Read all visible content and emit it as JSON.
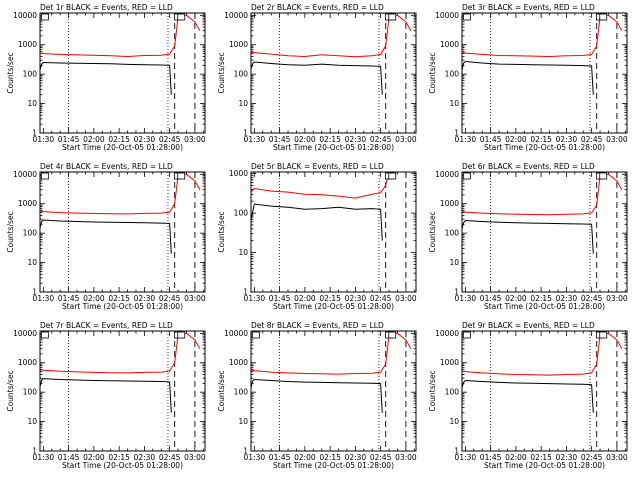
{
  "chart_data": [
    {
      "type": "line",
      "title": "Det 1r BLACK = Events, RED = LLD",
      "xlabel": "Start Time (20-Oct-05 01:28:00)",
      "ylabel": "Counts/sec",
      "xticks": [
        "01:30",
        "01:45",
        "02:00",
        "02:15",
        "02:30",
        "02:45",
        "03:00"
      ],
      "yticks": [
        "1",
        "10",
        "100",
        "1000",
        "10000"
      ],
      "yscale": "log",
      "ylim": [
        1,
        12000
      ],
      "dotted_x": [
        "01:45",
        "02:44"
      ],
      "dashed_x": [
        "02:48",
        "03:00"
      ],
      "legend_boxes": [
        "01:30",
        "02:49",
        "02:51"
      ],
      "series": [
        {
          "color": "#000000",
          "x": [
            "01:28",
            "01:29",
            "01:30",
            "01:40",
            "01:50",
            "02:00",
            "02:10",
            "02:20",
            "02:30",
            "02:40",
            "02:45",
            "02:46"
          ],
          "values": [
            140,
            220,
            250,
            240,
            235,
            230,
            225,
            215,
            210,
            205,
            200,
            20
          ]
        },
        {
          "color": "#ff0000",
          "x": [
            "01:28",
            "01:29",
            "01:30",
            "01:40",
            "01:50",
            "02:00",
            "02:10",
            "02:20",
            "02:30",
            "02:40",
            "02:45",
            "02:48",
            "02:50",
            "02:55",
            "03:00",
            "03:03"
          ],
          "values": [
            500,
            520,
            500,
            470,
            450,
            440,
            420,
            400,
            430,
            440,
            480,
            900,
            9000,
            10000,
            6000,
            3000
          ]
        }
      ]
    },
    {
      "type": "line",
      "title": "Det 2r BLACK = Events, RED = LLD",
      "xlabel": "Start Time (20-Oct-05 01:28:00)",
      "ylabel": "Counts/sec",
      "xticks": [
        "01:30",
        "01:45",
        "02:00",
        "02:15",
        "02:30",
        "02:45",
        "03:00"
      ],
      "yticks": [
        "1",
        "10",
        "100",
        "1000",
        "10000"
      ],
      "yscale": "log",
      "ylim": [
        1,
        12000
      ],
      "dotted_x": [
        "01:45",
        "02:44"
      ],
      "dashed_x": [
        "02:48",
        "03:00"
      ],
      "legend_boxes": [
        "02:49",
        "02:51"
      ],
      "series": [
        {
          "color": "#000000",
          "x": [
            "01:28",
            "01:29",
            "01:30",
            "01:40",
            "01:50",
            "02:00",
            "02:10",
            "02:20",
            "02:30",
            "02:40",
            "02:45",
            "02:46"
          ],
          "values": [
            150,
            230,
            260,
            230,
            210,
            200,
            220,
            200,
            195,
            190,
            185,
            20
          ]
        },
        {
          "color": "#ff0000",
          "x": [
            "01:28",
            "01:29",
            "01:30",
            "01:40",
            "01:50",
            "02:00",
            "02:10",
            "02:20",
            "02:30",
            "02:40",
            "02:45",
            "02:48",
            "02:50",
            "02:55",
            "03:00",
            "03:03"
          ],
          "values": [
            520,
            560,
            540,
            480,
            420,
            400,
            460,
            420,
            390,
            420,
            470,
            900,
            9000,
            10000,
            6000,
            3000
          ]
        }
      ]
    },
    {
      "type": "line",
      "title": "Det 3r BLACK = Events, RED = LLD",
      "xlabel": "Start Time (20-Oct-05 01:28:00)",
      "ylabel": "Counts/sec",
      "xticks": [
        "01:30",
        "01:45",
        "02:00",
        "02:15",
        "02:30",
        "02:45",
        "03:00"
      ],
      "yticks": [
        "1",
        "10",
        "100",
        "1000",
        "10000"
      ],
      "yscale": "log",
      "ylim": [
        1,
        12000
      ],
      "dotted_x": [
        "01:45",
        "02:44"
      ],
      "dashed_x": [
        "02:48",
        "03:00"
      ],
      "legend_boxes": [
        "01:30",
        "02:49",
        "02:51"
      ],
      "series": [
        {
          "color": "#000000",
          "x": [
            "01:28",
            "01:29",
            "01:30",
            "01:40",
            "01:50",
            "02:00",
            "02:10",
            "02:20",
            "02:30",
            "02:40",
            "02:45",
            "02:46"
          ],
          "values": [
            140,
            240,
            270,
            240,
            220,
            215,
            210,
            205,
            200,
            195,
            190,
            20
          ]
        },
        {
          "color": "#ff0000",
          "x": [
            "01:28",
            "01:29",
            "01:30",
            "01:40",
            "01:50",
            "02:00",
            "02:10",
            "02:20",
            "02:30",
            "02:40",
            "02:45",
            "02:48",
            "02:50",
            "02:55",
            "03:00",
            "03:03"
          ],
          "values": [
            500,
            540,
            520,
            470,
            430,
            420,
            410,
            400,
            420,
            430,
            470,
            900,
            9000,
            10000,
            6000,
            3000
          ]
        }
      ]
    },
    {
      "type": "line",
      "title": "Det 4r BLACK = Events, RED = LLD",
      "xlabel": "Start Time (20-Oct-05 01:28:00)",
      "ylabel": "Counts/sec",
      "xticks": [
        "01:30",
        "01:45",
        "02:00",
        "02:15",
        "02:30",
        "02:45",
        "03:00"
      ],
      "yticks": [
        "1",
        "10",
        "100",
        "1000",
        "10000"
      ],
      "yscale": "log",
      "ylim": [
        1,
        12000
      ],
      "dotted_x": [
        "01:45",
        "02:44"
      ],
      "dashed_x": [
        "02:48",
        "03:00"
      ],
      "legend_boxes": [
        "01:30",
        "02:49",
        "02:51"
      ],
      "series": [
        {
          "color": "#000000",
          "x": [
            "01:28",
            "01:29",
            "01:30",
            "01:40",
            "01:50",
            "02:00",
            "02:10",
            "02:20",
            "02:30",
            "02:40",
            "02:45",
            "02:46"
          ],
          "values": [
            150,
            250,
            280,
            260,
            250,
            240,
            235,
            230,
            225,
            220,
            215,
            20
          ]
        },
        {
          "color": "#ff0000",
          "x": [
            "01:28",
            "01:29",
            "01:30",
            "01:40",
            "01:50",
            "02:00",
            "02:10",
            "02:20",
            "02:30",
            "02:40",
            "02:45",
            "02:48",
            "02:50",
            "02:55",
            "03:00",
            "03:03"
          ],
          "values": [
            520,
            560,
            540,
            500,
            480,
            470,
            460,
            450,
            470,
            480,
            520,
            1000,
            9000,
            10000,
            6000,
            3000
          ]
        }
      ]
    },
    {
      "type": "line",
      "title": "Det 5r BLACK = Events, RED = LLD",
      "xlabel": "Start Time (20-Oct-05 01:28:00)",
      "ylabel": "Counts/sec",
      "xticks": [
        "01:30",
        "01:45",
        "02:00",
        "02:15",
        "02:30",
        "02:45",
        "03:00"
      ],
      "yticks": [
        "1",
        "10",
        "100",
        "1000"
      ],
      "yscale": "log",
      "ylim": [
        1,
        1100
      ],
      "dotted_x": [
        "01:45",
        "02:44"
      ],
      "dashed_x": [
        "02:48",
        "03:00"
      ],
      "legend_boxes": [
        "02:49",
        "02:51"
      ],
      "series": [
        {
          "color": "#000000",
          "x": [
            "01:28",
            "01:29",
            "01:30",
            "01:40",
            "01:50",
            "02:00",
            "02:10",
            "02:20",
            "02:30",
            "02:40",
            "02:45",
            "02:46"
          ],
          "values": [
            60,
            110,
            170,
            150,
            140,
            125,
            130,
            140,
            125,
            130,
            125,
            20
          ]
        },
        {
          "color": "#ff0000",
          "x": [
            "01:28",
            "01:29",
            "01:30",
            "01:40",
            "01:50",
            "02:00",
            "02:10",
            "02:20",
            "02:30",
            "02:40",
            "02:45",
            "02:48",
            "02:50"
          ],
          "values": [
            330,
            380,
            420,
            360,
            340,
            300,
            290,
            270,
            240,
            300,
            330,
            500,
            1100
          ]
        }
      ]
    },
    {
      "type": "line",
      "title": "Det 6r BLACK = Events, RED = LLD",
      "xlabel": "Start Time (20-Oct-05 01:28:00)",
      "ylabel": "Counts/sec",
      "xticks": [
        "01:30",
        "01:45",
        "02:00",
        "02:15",
        "02:30",
        "02:45",
        "03:00"
      ],
      "yticks": [
        "1",
        "10",
        "100",
        "1000",
        "10000"
      ],
      "yscale": "log",
      "ylim": [
        1,
        12000
      ],
      "dotted_x": [
        "01:45",
        "02:44"
      ],
      "dashed_x": [
        "02:48",
        "03:00"
      ],
      "legend_boxes": [
        "01:30",
        "02:49",
        "02:51"
      ],
      "series": [
        {
          "color": "#000000",
          "x": [
            "01:28",
            "01:29",
            "01:30",
            "01:40",
            "01:50",
            "02:00",
            "02:10",
            "02:20",
            "02:30",
            "02:40",
            "02:45",
            "02:46"
          ],
          "values": [
            140,
            230,
            270,
            250,
            235,
            225,
            220,
            215,
            210,
            205,
            200,
            20
          ]
        },
        {
          "color": "#ff0000",
          "x": [
            "01:28",
            "01:29",
            "01:30",
            "01:40",
            "01:50",
            "02:00",
            "02:10",
            "02:20",
            "02:30",
            "02:40",
            "02:45",
            "02:48",
            "02:50",
            "02:55",
            "03:00",
            "03:03"
          ],
          "values": [
            500,
            540,
            520,
            480,
            460,
            440,
            430,
            420,
            440,
            450,
            490,
            900,
            9000,
            10000,
            6000,
            3000
          ]
        }
      ]
    },
    {
      "type": "line",
      "title": "Det 7r BLACK = Events, RED = LLD",
      "xlabel": "Start Time (20-Oct-05 01:28:00)",
      "ylabel": "Counts/sec",
      "xticks": [
        "01:30",
        "01:45",
        "02:00",
        "02:15",
        "02:30",
        "02:45",
        "03:00"
      ],
      "yticks": [
        "1",
        "10",
        "100",
        "1000",
        "10000"
      ],
      "yscale": "log",
      "ylim": [
        1,
        12000
      ],
      "dotted_x": [
        "01:45",
        "02:44"
      ],
      "dashed_x": [
        "02:48",
        "03:00"
      ],
      "legend_boxes": [
        "01:30",
        "02:49",
        "02:51"
      ],
      "series": [
        {
          "color": "#000000",
          "x": [
            "01:28",
            "01:29",
            "01:30",
            "01:40",
            "01:50",
            "02:00",
            "02:10",
            "02:20",
            "02:30",
            "02:40",
            "02:45",
            "02:46"
          ],
          "values": [
            150,
            260,
            290,
            270,
            260,
            250,
            245,
            240,
            235,
            230,
            225,
            20
          ]
        },
        {
          "color": "#ff0000",
          "x": [
            "01:28",
            "01:29",
            "01:30",
            "01:40",
            "01:50",
            "02:00",
            "02:10",
            "02:20",
            "02:30",
            "02:40",
            "02:45",
            "02:48",
            "02:50",
            "02:55",
            "03:00",
            "03:03"
          ],
          "values": [
            540,
            580,
            560,
            510,
            490,
            470,
            460,
            450,
            470,
            480,
            520,
            1000,
            9000,
            10000,
            6000,
            3000
          ]
        }
      ]
    },
    {
      "type": "line",
      "title": "Det 8r BLACK = Events, RED = LLD",
      "xlabel": "Start Time (20-Oct-05 01:28:00)",
      "ylabel": "Counts/sec",
      "xticks": [
        "01:30",
        "01:45",
        "02:00",
        "02:15",
        "02:30",
        "02:45",
        "03:00"
      ],
      "yticks": [
        "1",
        "10",
        "100",
        "1000",
        "10000"
      ],
      "yscale": "log",
      "ylim": [
        1,
        12000
      ],
      "dotted_x": [
        "01:45",
        "02:44"
      ],
      "dashed_x": [
        "02:48",
        "03:00"
      ],
      "legend_boxes": [
        "01:30",
        "02:49",
        "02:51"
      ],
      "series": [
        {
          "color": "#000000",
          "x": [
            "01:28",
            "01:29",
            "01:30",
            "01:40",
            "01:50",
            "02:00",
            "02:10",
            "02:20",
            "02:30",
            "02:40",
            "02:45",
            "02:46"
          ],
          "values": [
            140,
            240,
            270,
            250,
            230,
            220,
            215,
            210,
            205,
            200,
            195,
            20
          ]
        },
        {
          "color": "#ff0000",
          "x": [
            "01:28",
            "01:29",
            "01:30",
            "01:40",
            "01:50",
            "02:00",
            "02:10",
            "02:20",
            "02:30",
            "02:40",
            "02:45",
            "02:48",
            "02:50",
            "02:55",
            "03:00",
            "03:03"
          ],
          "values": [
            520,
            560,
            540,
            480,
            450,
            430,
            420,
            410,
            430,
            440,
            480,
            900,
            9000,
            10000,
            6000,
            3000
          ]
        }
      ]
    },
    {
      "type": "line",
      "title": "Det 9r BLACK = Events, RED = LLD",
      "xlabel": "Start Time (20-Oct-05 01:28:00)",
      "ylabel": "Counts/sec",
      "xticks": [
        "01:30",
        "01:45",
        "02:00",
        "02:15",
        "02:30",
        "02:45",
        "03:00"
      ],
      "yticks": [
        "1",
        "10",
        "100",
        "1000",
        "10000"
      ],
      "yscale": "log",
      "ylim": [
        1,
        12000
      ],
      "dotted_x": [
        "01:45",
        "02:44"
      ],
      "dashed_x": [
        "02:48",
        "03:00"
      ],
      "legend_boxes": [
        "01:30",
        "02:49",
        "02:51"
      ],
      "series": [
        {
          "color": "#000000",
          "x": [
            "01:28",
            "01:29",
            "01:30",
            "01:40",
            "01:50",
            "02:00",
            "02:10",
            "02:20",
            "02:30",
            "02:40",
            "02:45",
            "02:46"
          ],
          "values": [
            140,
            220,
            250,
            230,
            215,
            205,
            200,
            195,
            190,
            185,
            180,
            20
          ]
        },
        {
          "color": "#ff0000",
          "x": [
            "01:28",
            "01:29",
            "01:30",
            "01:40",
            "01:50",
            "02:00",
            "02:10",
            "02:20",
            "02:30",
            "02:40",
            "02:45",
            "02:48",
            "02:50",
            "02:55",
            "03:00",
            "03:03"
          ],
          "values": [
            480,
            520,
            500,
            450,
            420,
            400,
            390,
            380,
            400,
            410,
            450,
            900,
            9000,
            10000,
            6000,
            3000
          ]
        }
      ]
    }
  ]
}
